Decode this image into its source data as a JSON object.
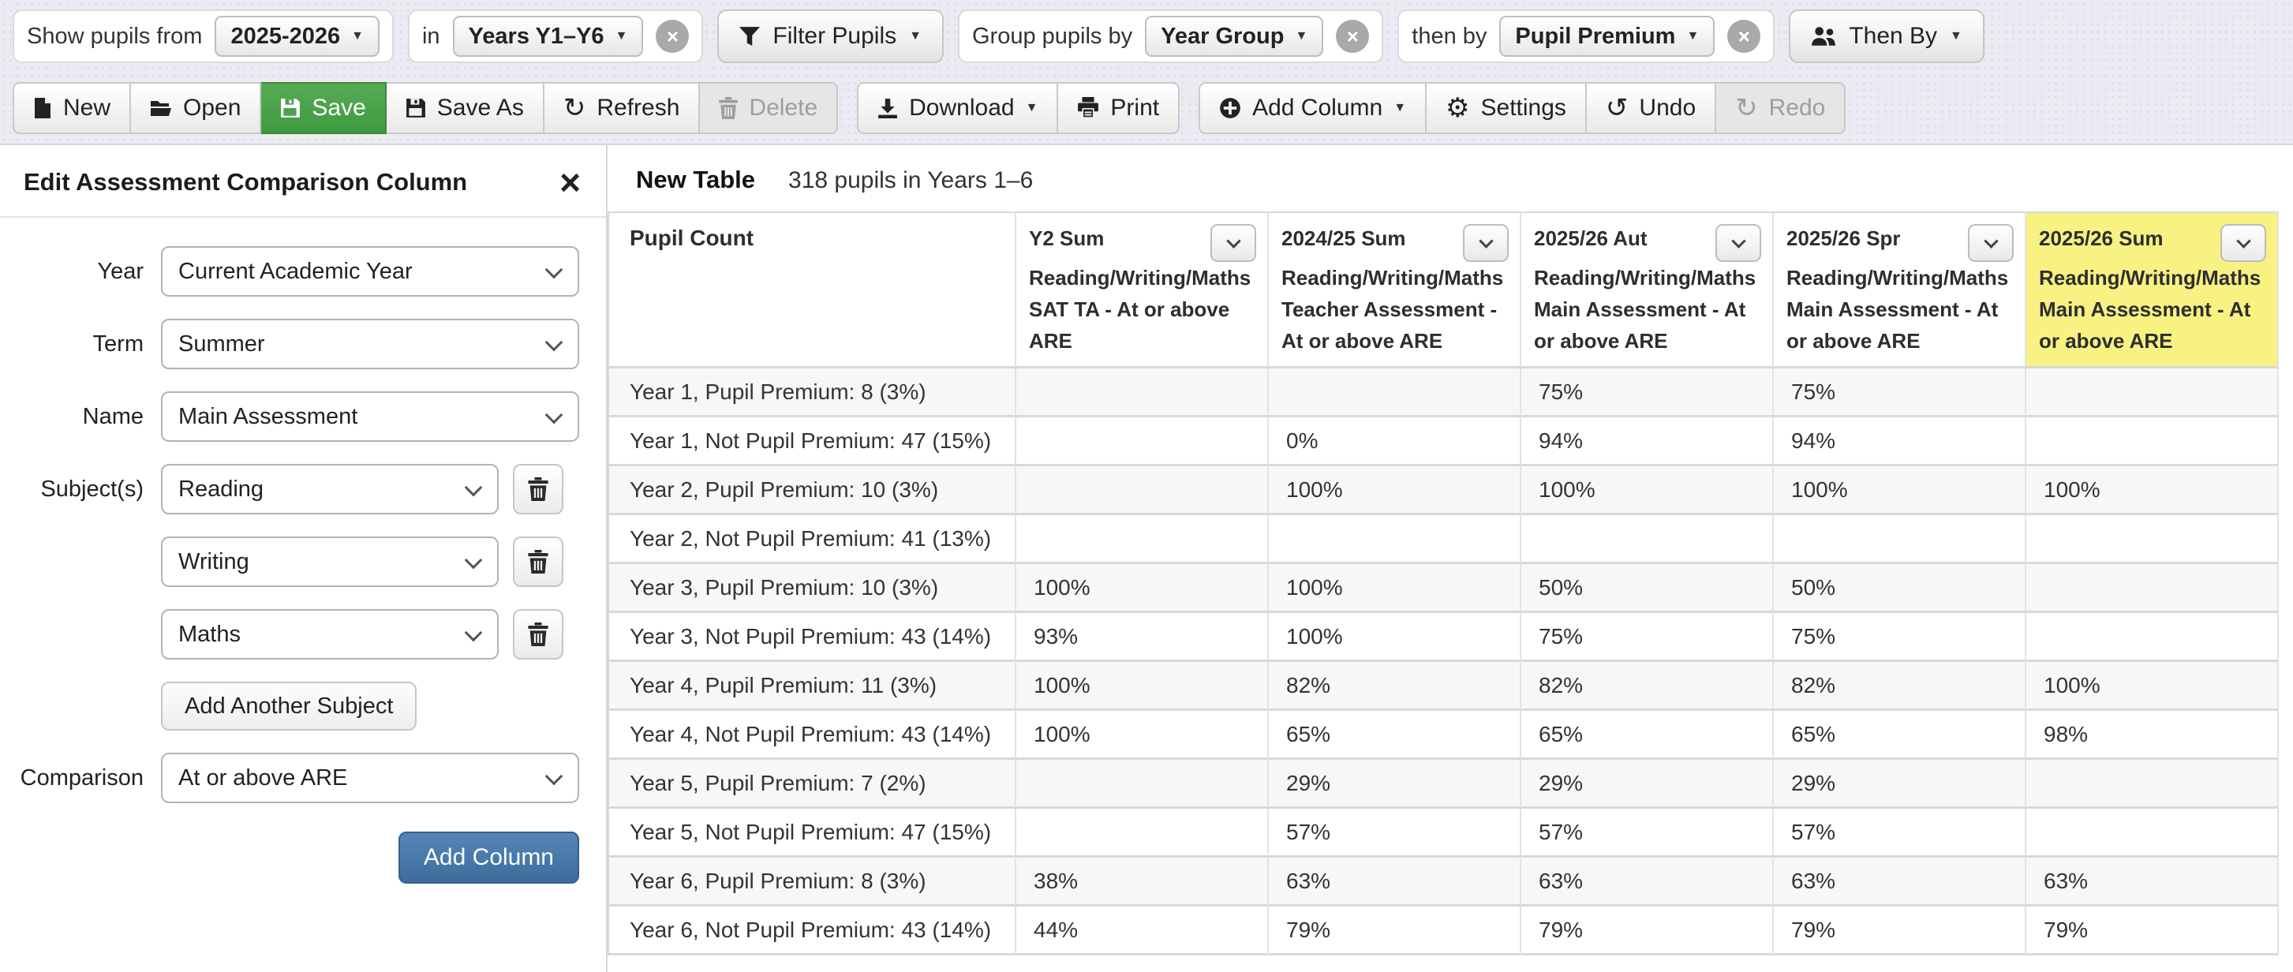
{
  "colors": {
    "topbar_bg": "#eceaf3",
    "divider": "#d8d6de",
    "save_green_top": "#56ac56",
    "save_green_bottom": "#3f9a3f",
    "save_green_border": "#398a39",
    "add_column_top": "#5386b7",
    "add_column_bottom": "#3e6d9c",
    "add_column_border": "#365f8a",
    "highlight_yellow": "#f7f282",
    "row_stripe": "#f7f7f7",
    "grid_line": "#d9d9d9"
  },
  "filter_bar": {
    "show_pupils_from_label": "Show pupils from",
    "academic_year": "2025-2026",
    "in_label": "in",
    "year_groups": "Years Y1–Y6",
    "filter_pupils_label": "Filter Pupils",
    "group_by_label": "Group pupils by",
    "group_by_value": "Year Group",
    "then_by_label": "then by",
    "then_by_value": "Pupil Premium",
    "then_by_button_label": "Then By",
    "remove_glyph": "×"
  },
  "toolbar": {
    "new_label": "New",
    "open_label": "Open",
    "save_label": "Save",
    "save_as_label": "Save As",
    "refresh_label": "Refresh",
    "delete_label": "Delete",
    "download_label": "Download",
    "print_label": "Print",
    "add_column_label": "Add Column",
    "settings_label": "Settings",
    "undo_label": "Undo",
    "redo_label": "Redo",
    "refresh_glyph": "↻",
    "settings_glyph": "⚙",
    "undo_glyph": "↺",
    "redo_glyph": "↻"
  },
  "panel": {
    "title": "Edit Assessment Comparison Column",
    "close_glyph": "×",
    "year_label": "Year",
    "year_value": "Current Academic Year",
    "term_label": "Term",
    "term_value": "Summer",
    "name_label": "Name",
    "name_value": "Main Assessment",
    "subjects_label": "Subject(s)",
    "subjects": [
      "Reading",
      "Writing",
      "Maths"
    ],
    "add_another_subject_label": "Add Another Subject",
    "comparison_label": "Comparison",
    "comparison_value": "At or above ARE",
    "add_column_label": "Add Column"
  },
  "table": {
    "title": "New Table",
    "subtitle": "318 pupils in Years 1–6",
    "row_header": "Pupil Count",
    "columns": [
      {
        "period": "Y2 Sum",
        "desc": "Reading/Writing/Maths SAT TA - At or above ARE",
        "highlight": false
      },
      {
        "period": "2024/25 Sum",
        "desc": "Reading/Writing/Maths Teacher Assessment - At or above ARE",
        "highlight": false
      },
      {
        "period": "2025/26 Aut",
        "desc": "Reading/Writing/Maths Main Assessment - At or above ARE",
        "highlight": false
      },
      {
        "period": "2025/26 Spr",
        "desc": "Reading/Writing/Maths Main Assessment - At or above ARE",
        "highlight": false
      },
      {
        "period": "2025/26 Sum",
        "desc": "Reading/Writing/Maths Main Assessment - At or above ARE",
        "highlight": true
      }
    ],
    "rows": [
      {
        "label": "Year 1, Pupil Premium: 8 (3%)",
        "values": [
          "",
          "",
          "75%",
          "75%",
          ""
        ]
      },
      {
        "label": "Year 1, Not Pupil Premium: 47 (15%)",
        "values": [
          "",
          "0%",
          "94%",
          "94%",
          ""
        ]
      },
      {
        "label": "Year 2, Pupil Premium: 10 (3%)",
        "values": [
          "",
          "100%",
          "100%",
          "100%",
          "100%"
        ]
      },
      {
        "label": "Year 2, Not Pupil Premium: 41 (13%)",
        "values": [
          "",
          "",
          "",
          "",
          ""
        ]
      },
      {
        "label": "Year 3, Pupil Premium: 10 (3%)",
        "values": [
          "100%",
          "100%",
          "50%",
          "50%",
          ""
        ]
      },
      {
        "label": "Year 3, Not Pupil Premium: 43 (14%)",
        "values": [
          "93%",
          "100%",
          "75%",
          "75%",
          ""
        ]
      },
      {
        "label": "Year 4, Pupil Premium: 11 (3%)",
        "values": [
          "100%",
          "82%",
          "82%",
          "82%",
          "100%"
        ]
      },
      {
        "label": "Year 4, Not Pupil Premium: 43 (14%)",
        "values": [
          "100%",
          "65%",
          "65%",
          "65%",
          "98%"
        ]
      },
      {
        "label": "Year 5, Pupil Premium: 7 (2%)",
        "values": [
          "",
          "29%",
          "29%",
          "29%",
          ""
        ]
      },
      {
        "label": "Year 5, Not Pupil Premium: 47 (15%)",
        "values": [
          "",
          "57%",
          "57%",
          "57%",
          ""
        ]
      },
      {
        "label": "Year 6, Pupil Premium: 8 (3%)",
        "values": [
          "38%",
          "63%",
          "63%",
          "63%",
          "63%"
        ]
      },
      {
        "label": "Year 6, Not Pupil Premium: 43 (14%)",
        "values": [
          "44%",
          "79%",
          "79%",
          "79%",
          "79%"
        ]
      }
    ]
  }
}
